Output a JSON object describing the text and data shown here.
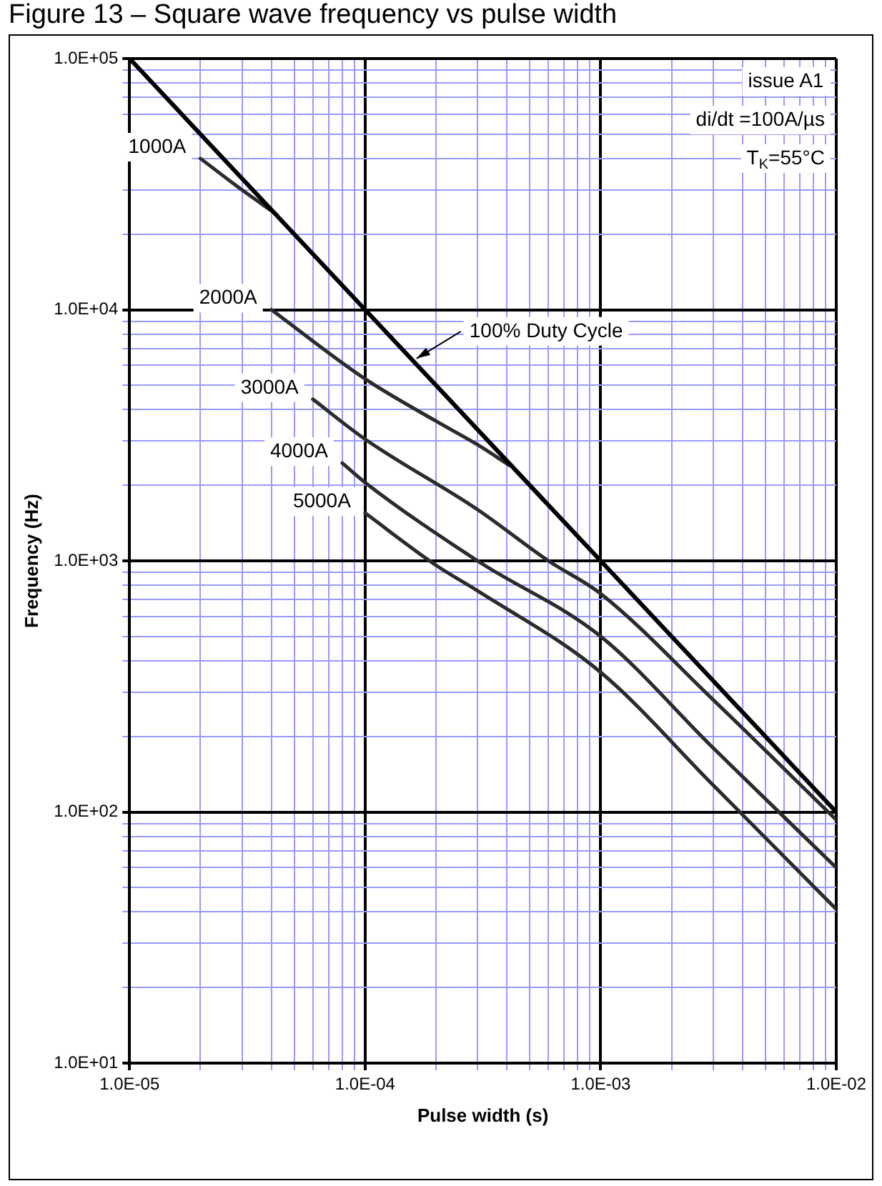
{
  "chart_data": {
    "type": "line",
    "title": "Figure 13 – Square wave frequency vs pulse width",
    "xlabel": "Pulse width (s)",
    "ylabel": "Frequency (Hz)",
    "log": "xy",
    "grid": true,
    "legend": false,
    "marker": "none",
    "line_style": "solid",
    "xlim": [
      1e-05,
      0.01
    ],
    "ylim": [
      10,
      100000
    ],
    "xticks": [
      {
        "value": 1e-05,
        "label": "1.0E-05"
      },
      {
        "value": 2e-05,
        "label": null
      },
      {
        "value": 3e-05,
        "label": null
      },
      {
        "value": 4e-05,
        "label": null
      },
      {
        "value": 5e-05,
        "label": null
      },
      {
        "value": 6e-05,
        "label": null
      },
      {
        "value": 7e-05,
        "label": null
      },
      {
        "value": 8e-05,
        "label": null
      },
      {
        "value": 9e-05,
        "label": null
      },
      {
        "value": 0.0001,
        "label": "1.0E-04"
      },
      {
        "value": 0.0002,
        "label": null
      },
      {
        "value": 0.0003,
        "label": null
      },
      {
        "value": 0.0004,
        "label": null
      },
      {
        "value": 0.0005,
        "label": null
      },
      {
        "value": 0.0006,
        "label": null
      },
      {
        "value": 0.0007,
        "label": null
      },
      {
        "value": 0.0008,
        "label": null
      },
      {
        "value": 0.0009,
        "label": null
      },
      {
        "value": 0.001,
        "label": "1.0E-03"
      },
      {
        "value": 0.002,
        "label": null
      },
      {
        "value": 0.003,
        "label": null
      },
      {
        "value": 0.004,
        "label": null
      },
      {
        "value": 0.005,
        "label": null
      },
      {
        "value": 0.006,
        "label": null
      },
      {
        "value": 0.007,
        "label": null
      },
      {
        "value": 0.008,
        "label": null
      },
      {
        "value": 0.009,
        "label": null
      },
      {
        "value": 0.01,
        "label": "1.0E-02"
      }
    ],
    "yticks": [
      {
        "value": 10,
        "label": "1.0E+01"
      },
      {
        "value": 20,
        "label": null
      },
      {
        "value": 30,
        "label": null
      },
      {
        "value": 40,
        "label": null
      },
      {
        "value": 50,
        "label": null
      },
      {
        "value": 60,
        "label": null
      },
      {
        "value": 70,
        "label": null
      },
      {
        "value": 80,
        "label": null
      },
      {
        "value": 90,
        "label": null
      },
      {
        "value": 100,
        "label": "1.0E+02"
      },
      {
        "value": 200,
        "label": null
      },
      {
        "value": 300,
        "label": null
      },
      {
        "value": 400,
        "label": null
      },
      {
        "value": 500,
        "label": null
      },
      {
        "value": 600,
        "label": null
      },
      {
        "value": 700,
        "label": null
      },
      {
        "value": 800,
        "label": null
      },
      {
        "value": 900,
        "label": null
      },
      {
        "value": 1000,
        "label": "1.0E+03"
      },
      {
        "value": 2000,
        "label": null
      },
      {
        "value": 3000,
        "label": null
      },
      {
        "value": 4000,
        "label": null
      },
      {
        "value": 5000,
        "label": null
      },
      {
        "value": 6000,
        "label": null
      },
      {
        "value": 7000,
        "label": null
      },
      {
        "value": 8000,
        "label": null
      },
      {
        "value": 9000,
        "label": null
      },
      {
        "value": 10000,
        "label": "1.0E+04"
      },
      {
        "value": 20000,
        "label": null
      },
      {
        "value": 30000,
        "label": null
      },
      {
        "value": 40000,
        "label": null
      },
      {
        "value": 50000,
        "label": null
      },
      {
        "value": 60000,
        "label": null
      },
      {
        "value": 70000,
        "label": null
      },
      {
        "value": 80000,
        "label": null
      },
      {
        "value": 90000,
        "label": null
      },
      {
        "value": 100000,
        "label": "1.0E+05"
      }
    ],
    "series": [
      {
        "name": "100% Duty Cycle",
        "color": "#000000",
        "x": [
          1e-05,
          0.0001,
          0.001,
          0.01
        ],
        "values": [
          100000,
          10000,
          1000,
          100
        ]
      },
      {
        "name": "1000A",
        "color": "#2b2b2b",
        "x": [
          2e-05,
          3e-05,
          4.2e-05
        ],
        "values": [
          40000,
          30000,
          24000
        ]
      },
      {
        "name": "2000A",
        "color": "#2b2b2b",
        "x": [
          4e-05,
          0.0001,
          0.0002,
          0.0003,
          0.00041
        ],
        "values": [
          10000,
          5300,
          3600,
          2900,
          2400
        ]
      },
      {
        "name": "3000A",
        "color": "#2b2b2b",
        "x": [
          6e-05,
          0.0001,
          0.0003,
          0.0006,
          0.001,
          0.003,
          0.01
        ],
        "values": [
          4400,
          3050,
          1600,
          1000,
          740,
          280,
          93
        ]
      },
      {
        "name": "4000A",
        "color": "#2b2b2b",
        "x": [
          8e-05,
          0.0001,
          0.0003,
          0.001,
          0.003,
          0.01
        ],
        "values": [
          2450,
          2050,
          1000,
          500,
          180,
          60
        ]
      },
      {
        "name": "5000A",
        "color": "#2b2b2b",
        "x": [
          0.0001,
          0.0002,
          0.0003,
          0.001,
          0.003,
          0.01
        ],
        "values": [
          1550,
          960,
          760,
          360,
          128,
          41
        ]
      }
    ],
    "annotations": [
      "issue A1",
      "di/dt =100A/µs",
      "T$_{K}$=55°C"
    ]
  }
}
